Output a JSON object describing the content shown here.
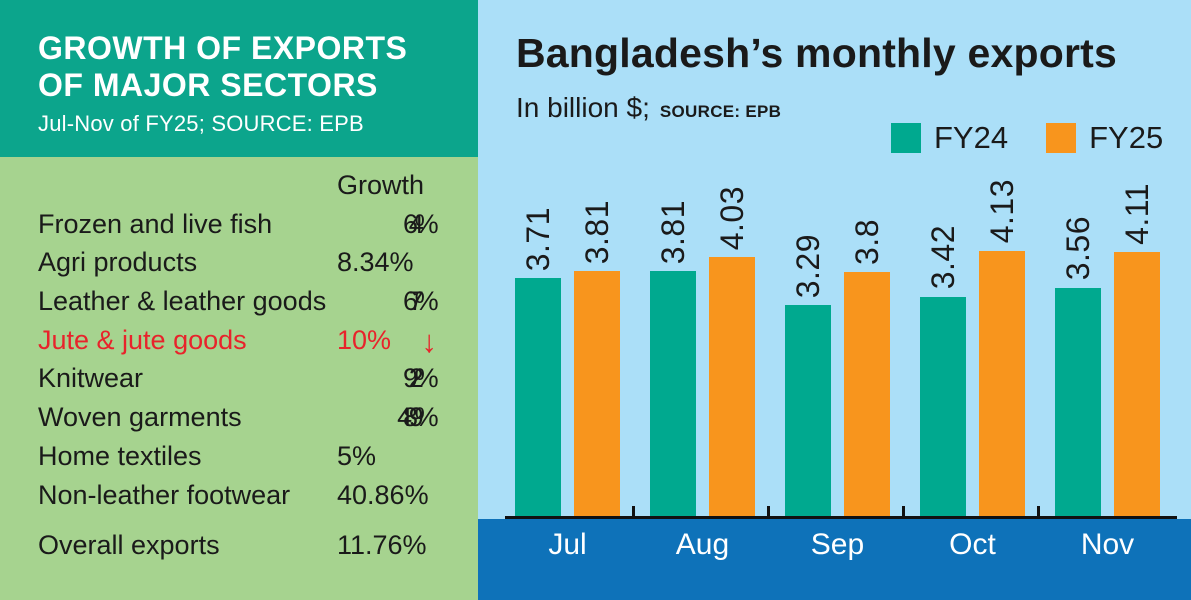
{
  "left_panel": {
    "title_line1": "GROWTH OF EXPORTS",
    "title_line2": "OF MAJOR SECTORS",
    "subtitle": "Jul-Nov of FY25; SOURCE: EPB",
    "column_header": "Growth",
    "rows": [
      {
        "label": "Frozen and live fish",
        "value": "64%",
        "garbled": true
      },
      {
        "label": "Agri products",
        "value": "8.34%"
      },
      {
        "label": "Leather & leather goods",
        "value": "67%",
        "garbled": true
      },
      {
        "label": "Jute & jute goods",
        "value": "10%",
        "direction": "down",
        "highlight": "red"
      },
      {
        "label": "Knitwear",
        "value": "92%",
        "garbled": true
      },
      {
        "label": "Woven garments",
        "value": "489%",
        "garbled": true
      },
      {
        "label": "Home textiles",
        "value": "5%"
      },
      {
        "label": "Non-leather footwear",
        "value": "40.86%"
      }
    ],
    "summary_row": {
      "label": "Overall exports",
      "value": "11.76%"
    }
  },
  "chart": {
    "title": "Bangladesh’s monthly exports",
    "unit_label": "In billion $;",
    "source_label": "SOURCE: EPB"
  },
  "chart_data": {
    "type": "bar",
    "title": "Bangladesh’s monthly exports",
    "unit": "billion $",
    "source": "EPB",
    "categories": [
      "Jul",
      "Aug",
      "Sep",
      "Oct",
      "Nov"
    ],
    "series": [
      {
        "name": "FY24",
        "color": "#00a98f",
        "values": [
          3.71,
          3.81,
          3.29,
          3.42,
          3.56
        ],
        "labels": [
          "3.71",
          "3.81",
          "3.29",
          "3.42",
          "3.56"
        ]
      },
      {
        "name": "FY25",
        "color": "#f8951d",
        "values": [
          3.81,
          4.03,
          3.8,
          4.13,
          4.11
        ],
        "labels": [
          "3.81",
          "4.03",
          "3.8",
          "4.13",
          "4.11"
        ]
      }
    ],
    "value_labels_rotated": true,
    "legend_position": "top-right",
    "grid": false,
    "ylim": [
      0,
      4.5
    ]
  },
  "colors": {
    "header_teal": "#0ca58c",
    "panel_green": "#a6d38f",
    "chart_sky_blue": "#abdff8",
    "bottom_band_blue": "#0e72b9",
    "bar_teal": "#00a98f",
    "bar_orange": "#f8951d",
    "alert_red": "#e8232b",
    "text_dark": "#1a1a1a",
    "text_white": "#ffffff"
  }
}
